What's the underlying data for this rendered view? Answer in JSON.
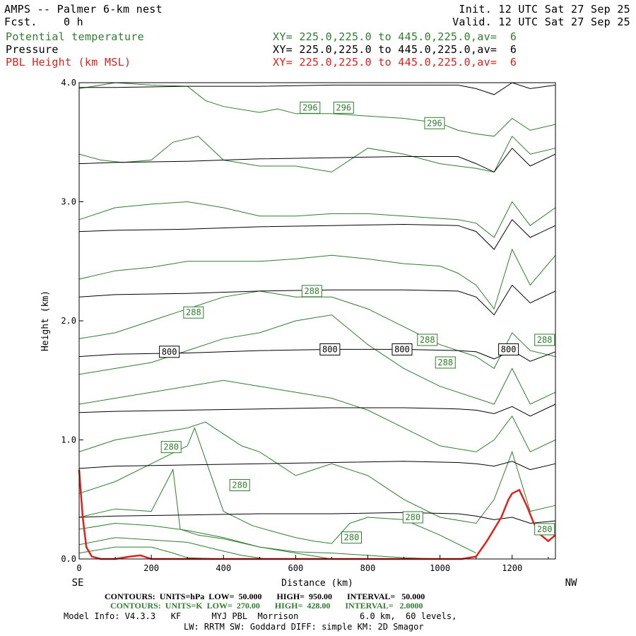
{
  "header": {
    "title": "AMPS -- Palmer 6-km nest",
    "fcst": "Fcst.    0 h",
    "init": "Init. 12 UTC Sat 27 Sep 25",
    "valid": "Valid. 12 UTC Sat 27 Sep 25",
    "fields": [
      {
        "name": "Potential temperature",
        "xy": "XY= 225.0,225.0 to 445.0,225.0,av=  6",
        "color": "#2f7d2f"
      },
      {
        "name": "Pressure",
        "xy": "XY= 225.0,225.0 to 445.0,225.0,av=  6",
        "color": "#000000"
      },
      {
        "name": "PBL Height (km MSL)",
        "xy": "XY= 225.0,225.0 to 445.0,225.0,av=  6",
        "color": "#e0201c"
      }
    ]
  },
  "chart_data": {
    "type": "line",
    "xlabel": "Distance (km)",
    "ylabel": "Height (km)",
    "xlim": [
      0,
      1320
    ],
    "ylim": [
      0,
      4.0
    ],
    "x_ticks": [
      "0",
      "200",
      "400",
      "600",
      "800",
      "1000",
      "1200"
    ],
    "y_ticks": [
      "0.0",
      "1.0",
      "2.0",
      "3.0",
      "4.0"
    ],
    "x_end_labels": {
      "left": "SE",
      "right": "NW"
    },
    "pressure_contours": [
      {
        "level": 950,
        "x": [
          0,
          100,
          300,
          500,
          700,
          900,
          1050,
          1100,
          1150,
          1200,
          1250,
          1320
        ],
        "y": [
          0.35,
          0.36,
          0.37,
          0.38,
          0.38,
          0.39,
          0.38,
          0.36,
          0.33,
          0.35,
          0.3,
          0.32
        ]
      },
      {
        "level": 900,
        "x": [
          0,
          100,
          300,
          500,
          700,
          900,
          1050,
          1100,
          1150,
          1200,
          1250,
          1320
        ],
        "y": [
          0.76,
          0.78,
          0.79,
          0.8,
          0.81,
          0.82,
          0.81,
          0.8,
          0.78,
          0.82,
          0.75,
          0.8
        ]
      },
      {
        "level": 850,
        "x": [
          0,
          100,
          300,
          500,
          700,
          900,
          1050,
          1100,
          1150,
          1200,
          1250,
          1320
        ],
        "y": [
          1.23,
          1.24,
          1.25,
          1.26,
          1.27,
          1.27,
          1.26,
          1.25,
          1.22,
          1.28,
          1.2,
          1.3
        ]
      },
      {
        "level": 800,
        "x": [
          0,
          100,
          300,
          500,
          700,
          900,
          1050,
          1100,
          1150,
          1200,
          1250,
          1320
        ],
        "y": [
          1.7,
          1.72,
          1.73,
          1.75,
          1.76,
          1.76,
          1.75,
          1.74,
          1.68,
          1.75,
          1.66,
          1.74
        ]
      },
      {
        "level": 750,
        "x": [
          0,
          100,
          300,
          500,
          700,
          900,
          1050,
          1100,
          1150,
          1200,
          1250,
          1320
        ],
        "y": [
          2.2,
          2.22,
          2.23,
          2.25,
          2.26,
          2.26,
          2.25,
          2.2,
          2.05,
          2.3,
          2.15,
          2.25
        ]
      },
      {
        "level": 700,
        "x": [
          0,
          100,
          300,
          500,
          700,
          900,
          1050,
          1100,
          1150,
          1200,
          1250,
          1320
        ],
        "y": [
          2.75,
          2.76,
          2.77,
          2.79,
          2.8,
          2.81,
          2.8,
          2.75,
          2.6,
          2.85,
          2.7,
          2.8
        ]
      },
      {
        "level": 650,
        "x": [
          0,
          100,
          300,
          500,
          700,
          900,
          1050,
          1100,
          1150,
          1200,
          1250,
          1320
        ],
        "y": [
          3.32,
          3.33,
          3.34,
          3.36,
          3.37,
          3.38,
          3.38,
          3.32,
          3.25,
          3.45,
          3.3,
          3.4
        ]
      },
      {
        "level": 600,
        "x": [
          0,
          100,
          300,
          500,
          700,
          900,
          1050,
          1100,
          1150,
          1200,
          1250,
          1320
        ],
        "y": [
          3.96,
          3.96,
          3.97,
          3.97,
          3.98,
          3.98,
          3.98,
          3.95,
          3.9,
          4.0,
          3.95,
          3.98
        ]
      }
    ],
    "theta_contours": [
      {
        "level": 272,
        "x": [
          0,
          100,
          200,
          260,
          300,
          400
        ],
        "y": [
          0.05,
          0.1,
          0.1,
          0.05,
          0.01,
          0.0
        ]
      },
      {
        "level": 274,
        "x": [
          0,
          100,
          200,
          300,
          380,
          450,
          520
        ],
        "y": [
          0.12,
          0.18,
          0.16,
          0.14,
          0.08,
          0.03,
          0.0
        ]
      },
      {
        "level": 276,
        "x": [
          0,
          100,
          200,
          300,
          400,
          500,
          600,
          700
        ],
        "y": [
          0.25,
          0.3,
          0.28,
          0.24,
          0.18,
          0.1,
          0.05,
          0.0
        ]
      },
      {
        "level": 278,
        "x": [
          0,
          100,
          200,
          260,
          280,
          330,
          400,
          500,
          600,
          700,
          800,
          900,
          1000
        ],
        "y": [
          0.35,
          0.42,
          0.4,
          0.75,
          0.25,
          0.2,
          0.17,
          0.1,
          0.06,
          0.05,
          0.03,
          0.01,
          0.0
        ]
      },
      {
        "level": 280,
        "x": [
          0,
          100,
          200,
          300,
          320,
          360,
          400,
          480,
          550,
          600,
          650,
          700,
          750,
          800,
          900,
          1000,
          1100
        ],
        "y": [
          0.55,
          0.65,
          0.8,
          0.95,
          1.1,
          0.75,
          0.4,
          0.28,
          0.22,
          0.18,
          0.15,
          0.13,
          0.3,
          0.35,
          0.33,
          0.2,
          0.05
        ]
      },
      {
        "level": 282,
        "x": [
          0,
          100,
          200,
          300,
          350,
          400,
          450,
          500,
          600,
          650,
          700,
          800,
          900,
          1000,
          1100,
          1150,
          1200,
          1250,
          1320
        ],
        "y": [
          0.9,
          1.0,
          1.05,
          1.1,
          1.15,
          1.05,
          0.95,
          0.9,
          0.7,
          0.75,
          0.8,
          0.7,
          0.5,
          0.35,
          0.3,
          0.5,
          0.9,
          0.4,
          0.45
        ]
      },
      {
        "level": 284,
        "x": [
          0,
          100,
          200,
          300,
          400,
          500,
          600,
          700,
          800,
          900,
          1000,
          1100,
          1150,
          1200,
          1250,
          1320
        ],
        "y": [
          1.3,
          1.35,
          1.4,
          1.45,
          1.5,
          1.45,
          1.4,
          1.35,
          1.25,
          1.1,
          0.95,
          0.9,
          1.0,
          1.2,
          0.9,
          1.0
        ]
      },
      {
        "level": 286,
        "x": [
          0,
          100,
          200,
          300,
          400,
          500,
          600,
          700,
          800,
          900,
          1000,
          1100,
          1150,
          1200,
          1250,
          1320
        ],
        "y": [
          1.55,
          1.6,
          1.65,
          1.75,
          1.85,
          1.9,
          2.0,
          2.05,
          1.8,
          1.6,
          1.45,
          1.35,
          1.3,
          1.6,
          1.3,
          1.4
        ]
      },
      {
        "level": 288,
        "x": [
          0,
          100,
          200,
          300,
          400,
          500,
          600,
          700,
          800,
          900,
          1000,
          1050,
          1100,
          1150,
          1200,
          1250,
          1320
        ],
        "y": [
          1.85,
          1.9,
          2.0,
          2.1,
          2.2,
          2.25,
          2.2,
          2.2,
          2.1,
          1.95,
          1.8,
          1.75,
          1.7,
          1.6,
          1.9,
          1.75,
          1.7
        ]
      },
      {
        "level": 290,
        "x": [
          0,
          100,
          200,
          300,
          400,
          500,
          600,
          700,
          800,
          900,
          1000,
          1050,
          1100,
          1150,
          1200,
          1250,
          1320
        ],
        "y": [
          2.35,
          2.42,
          2.45,
          2.5,
          2.5,
          2.5,
          2.52,
          2.55,
          2.52,
          2.48,
          2.46,
          2.4,
          2.3,
          2.1,
          2.6,
          2.3,
          2.55
        ]
      },
      {
        "level": 292,
        "x": [
          0,
          100,
          200,
          300,
          400,
          500,
          600,
          700,
          800,
          900,
          1000,
          1050,
          1100,
          1150,
          1200,
          1250,
          1320
        ],
        "y": [
          2.85,
          2.95,
          2.98,
          3.0,
          2.95,
          2.88,
          2.88,
          2.9,
          2.9,
          2.88,
          2.86,
          2.85,
          2.82,
          2.7,
          3.0,
          2.8,
          2.95
        ]
      },
      {
        "level": 294,
        "x": [
          0,
          60,
          120,
          200,
          260,
          330,
          400,
          500,
          600,
          700,
          800,
          900,
          1000,
          1050,
          1100,
          1150,
          1200,
          1250,
          1320
        ],
        "y": [
          3.4,
          3.35,
          3.33,
          3.35,
          3.5,
          3.55,
          3.35,
          3.3,
          3.3,
          3.25,
          3.45,
          3.4,
          3.32,
          3.3,
          3.28,
          3.25,
          3.55,
          3.4,
          3.45
        ]
      },
      {
        "level": 296,
        "x": [
          0,
          100,
          200,
          300,
          350,
          400,
          500,
          550,
          600,
          700,
          800,
          900,
          1000,
          1050,
          1100,
          1150,
          1200,
          1250,
          1320
        ],
        "y": [
          3.95,
          4.0,
          3.98,
          3.97,
          3.85,
          3.8,
          3.75,
          3.78,
          3.74,
          3.74,
          3.72,
          3.7,
          3.66,
          3.6,
          3.57,
          3.55,
          3.7,
          3.6,
          3.65
        ]
      }
    ],
    "pbl_height": {
      "x": [
        0,
        10,
        20,
        35,
        60,
        100,
        140,
        170,
        200,
        300,
        600,
        1000,
        1060,
        1100,
        1130,
        1150,
        1170,
        1190,
        1200,
        1220,
        1240,
        1260,
        1280,
        1300,
        1320
      ],
      "y": [
        0.75,
        0.35,
        0.1,
        0.02,
        0.0,
        0.0,
        0.02,
        0.03,
        0.0,
        0.0,
        0.0,
        0.0,
        0.0,
        0.02,
        0.15,
        0.25,
        0.35,
        0.5,
        0.55,
        0.58,
        0.45,
        0.3,
        0.2,
        0.15,
        0.2
      ]
    },
    "contour_labels": [
      {
        "text": "296",
        "x": 640,
        "y": 3.79,
        "color": "#2f7d2f"
      },
      {
        "text": "296",
        "x": 733,
        "y": 3.79,
        "color": "#2f7d2f"
      },
      {
        "text": "296",
        "x": 985,
        "y": 3.66,
        "color": "#2f7d2f"
      },
      {
        "text": "288",
        "x": 645,
        "y": 2.25,
        "color": "#2f7d2f"
      },
      {
        "text": "288",
        "x": 317,
        "y": 2.07,
        "color": "#2f7d2f"
      },
      {
        "text": "288",
        "x": 965,
        "y": 1.84,
        "color": "#2f7d2f"
      },
      {
        "text": "288",
        "x": 1015,
        "y": 1.65,
        "color": "#2f7d2f"
      },
      {
        "text": "288",
        "x": 1290,
        "y": 1.84,
        "color": "#2f7d2f"
      },
      {
        "text": "800",
        "x": 250,
        "y": 1.74,
        "color": "#000000"
      },
      {
        "text": "800",
        "x": 695,
        "y": 1.76,
        "color": "#000000"
      },
      {
        "text": "800",
        "x": 895,
        "y": 1.76,
        "color": "#000000"
      },
      {
        "text": "800",
        "x": 1190,
        "y": 1.76,
        "color": "#000000"
      },
      {
        "text": "280",
        "x": 255,
        "y": 0.94,
        "color": "#2f7d2f"
      },
      {
        "text": "280",
        "x": 445,
        "y": 0.62,
        "color": "#2f7d2f"
      },
      {
        "text": "280",
        "x": 925,
        "y": 0.35,
        "color": "#2f7d2f"
      },
      {
        "text": "280",
        "x": 755,
        "y": 0.18,
        "color": "#2f7d2f"
      },
      {
        "text": "280",
        "x": 1290,
        "y": 0.25,
        "color": "#2f7d2f"
      }
    ]
  },
  "footer": {
    "pressure_contours": "CONTOURS:  UNITS=hPa  LOW=  50.000       HIGH=  950.00       INTERVAL=   50.000",
    "theta_contours": "CONTOURS:  UNITS=K  LOW=  270.00       HIGH=  428.00       INTERVAL=   2.0000",
    "model_info": "Model Info: V4.3.3   KF      MYJ PBL  Morrison            6.0 km,  60 levels,",
    "physics": "LW: RRTM SW: Goddard DIFF: simple KM: 2D Smagor"
  }
}
